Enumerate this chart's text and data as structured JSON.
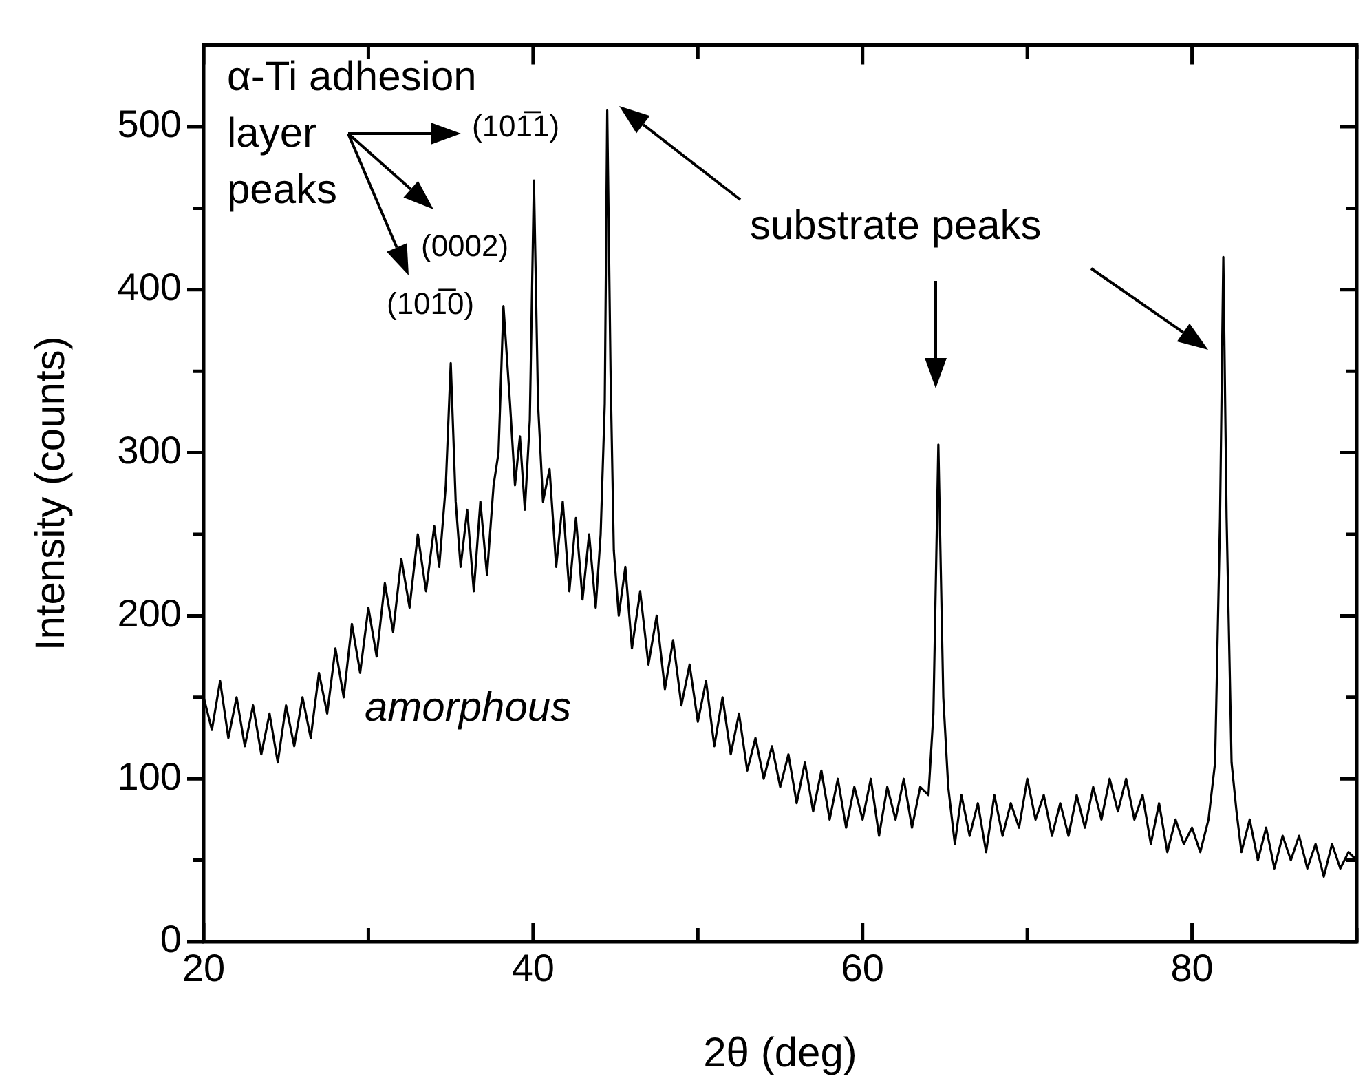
{
  "chart_data": {
    "type": "line",
    "xlabel": "2θ (deg)",
    "ylabel": "Intensity (counts)",
    "xlim": [
      20,
      90
    ],
    "ylim": [
      0,
      550
    ],
    "xticks": [
      20,
      {
        "value": 30,
        "label": null
      },
      40,
      {
        "value": 50,
        "label": null
      },
      60,
      {
        "value": 70,
        "label": null
      },
      80,
      {
        "value": 90,
        "label": null
      }
    ],
    "yticks": [
      0,
      {
        "value": 50,
        "label": null
      },
      100,
      {
        "value": 150,
        "label": null
      },
      200,
      {
        "value": 250,
        "label": null
      },
      300,
      {
        "value": 350,
        "label": null
      },
      400,
      {
        "value": 450,
        "label": null
      },
      500
    ],
    "grid": false,
    "legend": false,
    "marker": "none",
    "line_style": "solid",
    "annotations": [
      "α-Ti adhesion\nlayer\npeaks",
      "(101̅1)",
      "(0002)",
      "(101̅0)",
      "substrate peaks",
      "amorphous"
    ],
    "series": [
      {
        "color": "#000000",
        "x": [
          20,
          20.5,
          21,
          21.5,
          22,
          22.5,
          23,
          23.5,
          24,
          24.5,
          25,
          25.5,
          26,
          26.5,
          27,
          27.5,
          28,
          28.5,
          29,
          29.5,
          30,
          30.5,
          31,
          31.5,
          32,
          32.5,
          33,
          33.5,
          34,
          34.3,
          34.7,
          35,
          35.3,
          35.6,
          36,
          36.4,
          36.8,
          37.2,
          37.6,
          37.9,
          38.2,
          38.4,
          38.6,
          38.9,
          39.2,
          39.5,
          39.8,
          40.05,
          40.3,
          40.6,
          41,
          41.4,
          41.8,
          42.2,
          42.6,
          43,
          43.4,
          43.8,
          44.1,
          44.35,
          44.5,
          44.7,
          44.9,
          45.2,
          45.6,
          46,
          46.5,
          47,
          47.5,
          48,
          48.5,
          49,
          49.5,
          50,
          50.5,
          51,
          51.5,
          52,
          52.5,
          53,
          53.5,
          54,
          54.5,
          55,
          55.5,
          56,
          56.5,
          57,
          57.5,
          58,
          58.5,
          59,
          59.5,
          60,
          60.5,
          61,
          61.5,
          62,
          62.5,
          63,
          63.5,
          64,
          64.3,
          64.6,
          64.9,
          65.2,
          65.6,
          66,
          66.5,
          67,
          67.5,
          68,
          68.5,
          69,
          69.5,
          70,
          70.5,
          71,
          71.5,
          72,
          72.5,
          73,
          73.5,
          74,
          74.5,
          75,
          75.5,
          76,
          76.5,
          77,
          77.5,
          78,
          78.5,
          79,
          79.5,
          80,
          80.5,
          81,
          81.4,
          81.7,
          81.9,
          82.1,
          82.4,
          82.7,
          83,
          83.5,
          84,
          84.5,
          85,
          85.5,
          86,
          86.5,
          87,
          87.5,
          88,
          88.5,
          89,
          89.5,
          90
        ],
        "values": [
          150,
          130,
          160,
          125,
          150,
          120,
          145,
          115,
          140,
          110,
          145,
          120,
          150,
          125,
          165,
          140,
          180,
          150,
          195,
          165,
          205,
          175,
          220,
          190,
          235,
          205,
          250,
          215,
          255,
          230,
          280,
          355,
          270,
          230,
          265,
          215,
          270,
          225,
          280,
          300,
          390,
          360,
          330,
          280,
          310,
          265,
          320,
          467,
          330,
          270,
          290,
          230,
          270,
          215,
          260,
          210,
          250,
          205,
          250,
          330,
          510,
          350,
          240,
          200,
          230,
          180,
          215,
          170,
          200,
          155,
          185,
          145,
          170,
          135,
          160,
          120,
          150,
          115,
          140,
          105,
          125,
          100,
          120,
          95,
          115,
          85,
          110,
          80,
          105,
          75,
          100,
          70,
          95,
          75,
          100,
          65,
          95,
          75,
          100,
          70,
          95,
          90,
          140,
          305,
          150,
          95,
          60,
          90,
          65,
          85,
          55,
          90,
          65,
          85,
          70,
          100,
          75,
          90,
          65,
          85,
          65,
          90,
          70,
          95,
          75,
          100,
          80,
          100,
          75,
          90,
          60,
          85,
          55,
          75,
          60,
          70,
          55,
          75,
          110,
          260,
          420,
          260,
          110,
          80,
          55,
          75,
          50,
          70,
          45,
          65,
          50,
          65,
          45,
          60,
          40,
          60,
          45,
          55,
          50
        ]
      }
    ]
  }
}
